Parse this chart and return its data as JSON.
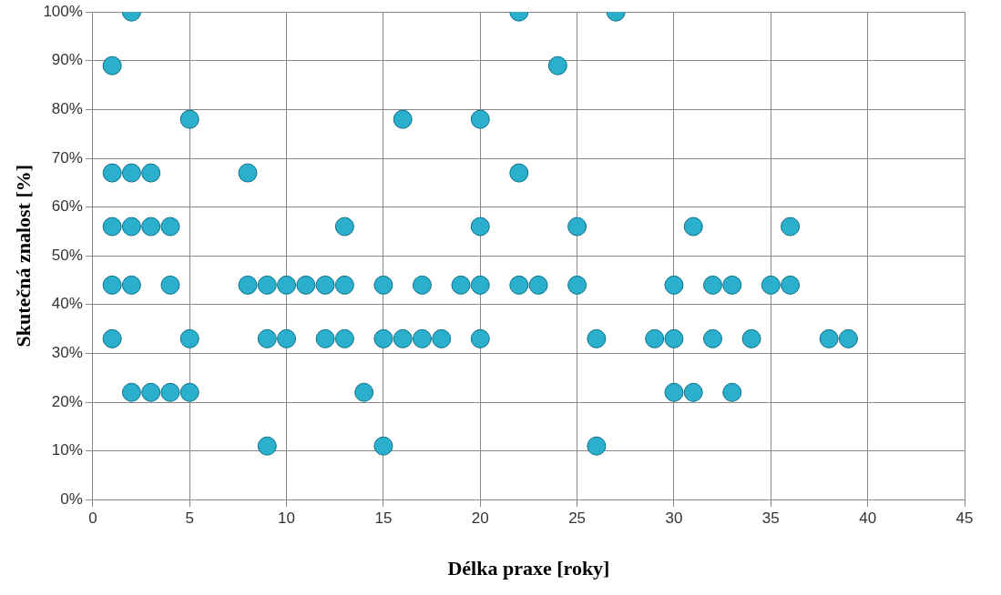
{
  "chart_data": {
    "type": "scatter",
    "xlabel": "Délka praxe [roky]",
    "ylabel": "Skutečná znalost [%]",
    "xlim": [
      0,
      45
    ],
    "xticks": [
      0,
      5,
      10,
      15,
      20,
      25,
      30,
      35,
      40,
      45
    ],
    "ylim": [
      0,
      100
    ],
    "yticks": [
      {
        "value": 0,
        "label": "0%"
      },
      {
        "value": 10,
        "label": "10%"
      },
      {
        "value": 20,
        "label": "20%"
      },
      {
        "value": 30,
        "label": "30%"
      },
      {
        "value": 40,
        "label": "40%"
      },
      {
        "value": 50,
        "label": "50%"
      },
      {
        "value": 60,
        "label": "60%"
      },
      {
        "value": 70,
        "label": "70%"
      },
      {
        "value": 80,
        "label": "80%"
      },
      {
        "value": 90,
        "label": "90%"
      },
      {
        "value": 100,
        "label": "100%"
      }
    ],
    "grid": true,
    "legend": false,
    "marker": "circle",
    "series": [
      {
        "color": "#2ab0cc",
        "x": [
          2,
          22,
          27,
          1,
          24,
          5,
          16,
          20,
          1,
          2,
          3,
          8,
          22,
          1,
          2,
          3,
          4,
          13,
          20,
          25,
          31,
          36,
          1,
          2,
          4,
          8,
          9,
          10,
          11,
          12,
          13,
          15,
          17,
          19,
          20,
          22,
          23,
          25,
          30,
          32,
          33,
          35,
          36,
          1,
          5,
          9,
          10,
          12,
          13,
          15,
          16,
          17,
          18,
          20,
          26,
          29,
          30,
          32,
          34,
          38,
          39,
          2,
          3,
          4,
          5,
          14,
          30,
          31,
          33,
          9,
          15,
          26
        ],
        "values": [
          100,
          100,
          100,
          89,
          89,
          78,
          78,
          78,
          67,
          67,
          67,
          67,
          67,
          56,
          56,
          56,
          56,
          56,
          56,
          56,
          56,
          56,
          44,
          44,
          44,
          44,
          44,
          44,
          44,
          44,
          44,
          44,
          44,
          44,
          44,
          44,
          44,
          44,
          44,
          44,
          44,
          44,
          44,
          33,
          33,
          33,
          33,
          33,
          33,
          33,
          33,
          33,
          33,
          33,
          33,
          33,
          33,
          33,
          33,
          33,
          33,
          22,
          22,
          22,
          22,
          22,
          22,
          22,
          22,
          11,
          11,
          11
        ]
      }
    ]
  }
}
